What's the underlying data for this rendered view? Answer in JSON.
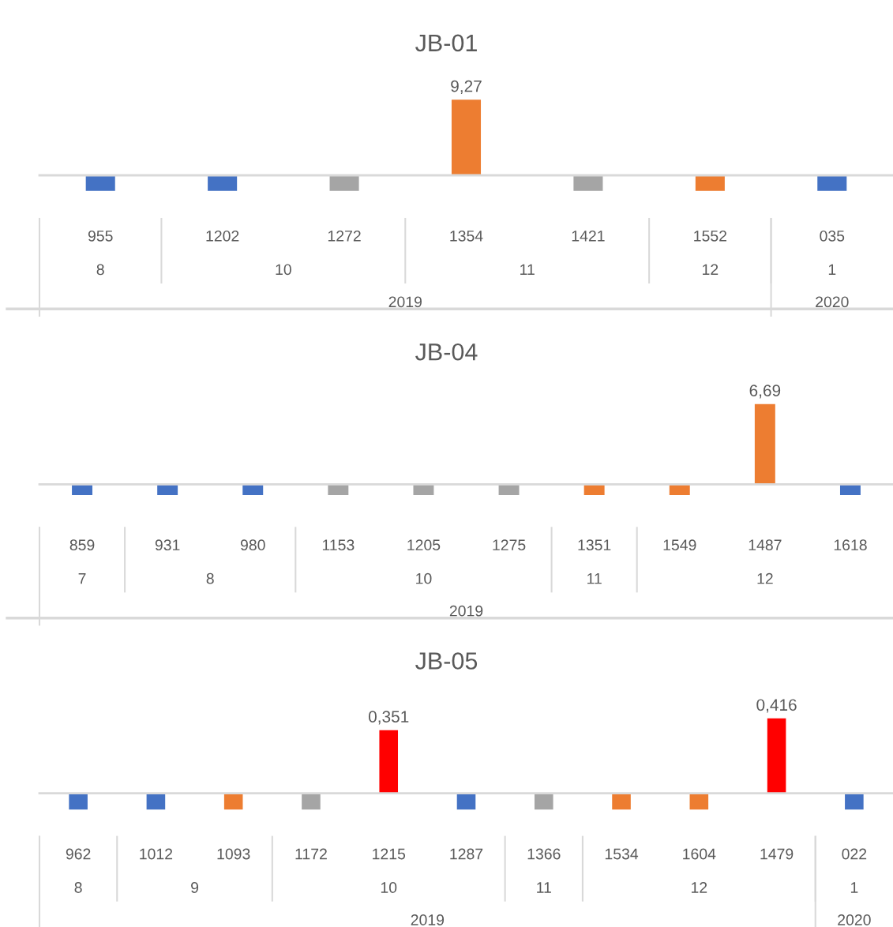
{
  "chart_data": [
    {
      "type": "bar",
      "title": "JB-01",
      "categories": [
        "955",
        "1202",
        "1272",
        "1354",
        "1421",
        "1552",
        "035"
      ],
      "values": [
        -1.9,
        -1.9,
        -1.9,
        9.27,
        -1.9,
        -1.9,
        -1.9
      ],
      "colors": [
        "#4472c4",
        "#4472c4",
        "#a5a5a5",
        "#ed7d31",
        "#a5a5a5",
        "#ed7d31",
        "#4472c4"
      ],
      "value_labels": [
        null,
        null,
        null,
        "9,27",
        null,
        null,
        null
      ],
      "annotations": [
        "8",
        "10",
        "11",
        "12",
        "1",
        "2019",
        "2020"
      ]
    },
    {
      "type": "bar",
      "title": "JB-04",
      "categories": [
        "859",
        "931",
        "980",
        "1153",
        "1205",
        "1275",
        "1351",
        "1549",
        "1487",
        "1618"
      ],
      "values": [
        -0.9,
        -0.9,
        -0.9,
        -0.9,
        -0.9,
        -0.9,
        -0.9,
        -0.9,
        6.69,
        -0.9
      ],
      "colors": [
        "#4472c4",
        "#4472c4",
        "#4472c4",
        "#a5a5a5",
        "#a5a5a5",
        "#a5a5a5",
        "#ed7d31",
        "#ed7d31",
        "#ed7d31",
        "#4472c4"
      ],
      "value_labels": [
        null,
        null,
        null,
        null,
        null,
        null,
        null,
        null,
        "6,69",
        null
      ],
      "annotations": [
        "7",
        "8",
        "10",
        "11",
        "12",
        "2019"
      ]
    },
    {
      "type": "bar",
      "title": "JB-05",
      "categories": [
        "962",
        "1012",
        "1093",
        "1172",
        "1215",
        "1287",
        "1366",
        "1534",
        "1604",
        "1479",
        "022"
      ],
      "values": [
        -0.09,
        -0.09,
        -0.09,
        -0.09,
        0.351,
        -0.09,
        -0.09,
        -0.09,
        -0.09,
        0.416,
        -0.09
      ],
      "colors": [
        "#4472c4",
        "#4472c4",
        "#ed7d31",
        "#a5a5a5",
        "#ff0000",
        "#4472c4",
        "#a5a5a5",
        "#ed7d31",
        "#ed7d31",
        "#ff0000",
        "#4472c4"
      ],
      "value_labels": [
        null,
        null,
        null,
        null,
        "0,351",
        null,
        null,
        null,
        null,
        "0,416",
        null
      ],
      "annotations": [
        "8",
        "9",
        "10",
        "11",
        "12",
        "1",
        "2019",
        "2020"
      ]
    }
  ]
}
